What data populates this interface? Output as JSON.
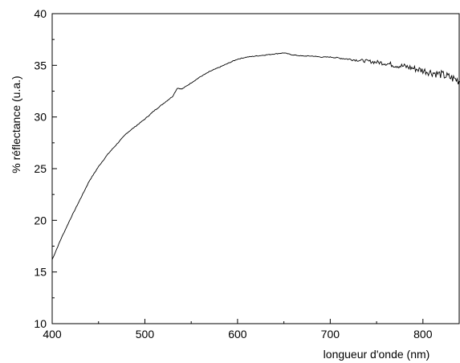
{
  "chart_data": {
    "type": "line",
    "title": "",
    "xlabel": "longueur d'onde (nm)",
    "ylabel": "% réflectance (u.a.)",
    "xlim": [
      400,
      840
    ],
    "ylim": [
      10,
      40
    ],
    "x_ticks": [
      400,
      500,
      600,
      700,
      800
    ],
    "x_tick_labels": [
      "400",
      "500",
      "600",
      "700",
      "800"
    ],
    "y_ticks": [
      10,
      15,
      20,
      25,
      30,
      35,
      40
    ],
    "y_tick_labels": [
      "10",
      "15",
      "20",
      "25",
      "30",
      "35",
      "40"
    ],
    "x_minor_ticks": [
      450,
      550,
      650,
      750
    ],
    "y_minor_ticks": [
      12.5,
      17.5,
      22.5,
      27.5,
      32.5,
      37.5
    ],
    "grid": false,
    "legend": "none",
    "line_color": "#000000",
    "series": [
      {
        "x": [
          400,
          410,
          420,
          430,
          440,
          450,
          460,
          470,
          480,
          490,
          500,
          510,
          520,
          530,
          535,
          540,
          550,
          560,
          570,
          580,
          590,
          600,
          610,
          620,
          630,
          640,
          650,
          660,
          670,
          680,
          690,
          700,
          710,
          720,
          730,
          740,
          750,
          760,
          770,
          780,
          790,
          800,
          810,
          820,
          830,
          840
        ],
        "y": [
          16.2,
          18.3,
          20.2,
          22.0,
          23.8,
          25.2,
          26.4,
          27.4,
          28.4,
          29.1,
          29.8,
          30.6,
          31.3,
          32.0,
          32.8,
          32.7,
          33.3,
          33.9,
          34.4,
          34.8,
          35.2,
          35.6,
          35.8,
          35.9,
          36.0,
          36.1,
          36.2,
          36.0,
          35.9,
          35.9,
          35.8,
          35.8,
          35.7,
          35.6,
          35.5,
          35.4,
          35.3,
          35.2,
          35.0,
          34.9,
          34.7,
          34.5,
          34.3,
          34.1,
          33.8,
          33.5
        ]
      }
    ]
  }
}
